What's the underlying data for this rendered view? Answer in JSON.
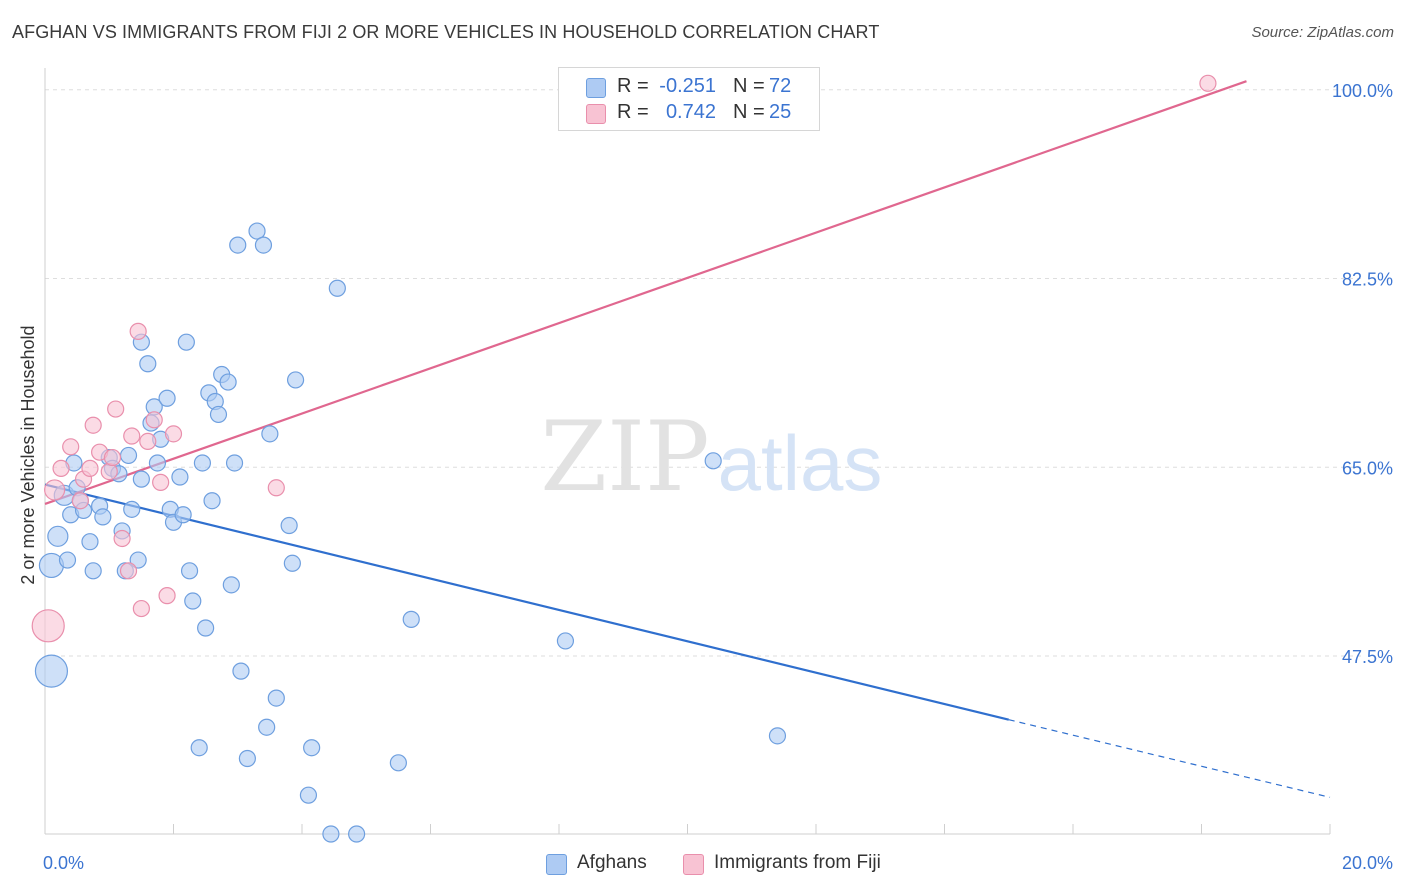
{
  "header": {
    "title": "AFGHAN VS IMMIGRANTS FROM FIJI 2 OR MORE VEHICLES IN HOUSEHOLD CORRELATION CHART",
    "source": "Source: ZipAtlas.com"
  },
  "watermark": {
    "zip": "ZIP",
    "atlas": "atlas"
  },
  "legend": {
    "rows": [
      {
        "r_label": "R =",
        "r_value": "-0.251",
        "n_label": "N =",
        "n_value": "72"
      },
      {
        "r_label": "R =",
        "r_value": "0.742",
        "n_label": "N =",
        "n_value": "25"
      }
    ],
    "bottom": [
      "Afghans",
      "Immigrants from Fiji"
    ]
  },
  "colors": {
    "afghan_fill": "#aecbf3",
    "afghan_stroke": "#6e9fdf",
    "afghan_line": "#2f6fce",
    "fiji_fill": "#f8c3d3",
    "fiji_stroke": "#e98fac",
    "fiji_line": "#e0678f",
    "tick_label": "#3b74d1",
    "grid": "#dedede"
  },
  "chart_data": {
    "type": "scatter",
    "title": "AFGHAN VS IMMIGRANTS FROM FIJI 2 OR MORE VEHICLES IN HOUSEHOLD CORRELATION CHART",
    "xlabel": "",
    "ylabel": "2 or more Vehicles in Household",
    "xlim": [
      0.0,
      20.0
    ],
    "ylim": [
      31.0,
      101.0
    ],
    "x_tick_labels": [
      "0.0%",
      "20.0%"
    ],
    "y_ticks": [
      47.5,
      65.0,
      82.5,
      100.0
    ],
    "y_tick_labels": [
      "47.5%",
      "65.0%",
      "82.5%",
      "100.0%"
    ],
    "grid": true,
    "legend_position": "top-center",
    "series": [
      {
        "name": "Afghans",
        "r": -0.251,
        "n": 72,
        "trend": {
          "x0": 0.0,
          "y0": 63.4,
          "x1": 15.0,
          "y1": 41.6,
          "dashed_to_x": 20.0,
          "dashed_to_y": 34.4
        },
        "points": [
          [
            0.1,
            55.9,
            2
          ],
          [
            0.1,
            46.1,
            3
          ],
          [
            0.2,
            58.6,
            1
          ],
          [
            0.3,
            62.4,
            1
          ],
          [
            0.35,
            56.4,
            0
          ],
          [
            0.4,
            60.6,
            0
          ],
          [
            0.45,
            65.4,
            0
          ],
          [
            0.5,
            63.1,
            0
          ],
          [
            0.55,
            61.9,
            0
          ],
          [
            0.6,
            61.0,
            0
          ],
          [
            0.7,
            58.1,
            0
          ],
          [
            0.75,
            55.4,
            0
          ],
          [
            0.85,
            61.4,
            0
          ],
          [
            0.9,
            60.4,
            0
          ],
          [
            1.0,
            65.9,
            0
          ],
          [
            1.05,
            64.9,
            0
          ],
          [
            1.15,
            64.4,
            0
          ],
          [
            1.2,
            59.1,
            0
          ],
          [
            1.25,
            55.4,
            0
          ],
          [
            1.3,
            66.1,
            0
          ],
          [
            1.35,
            61.1,
            0
          ],
          [
            1.45,
            56.4,
            0
          ],
          [
            1.5,
            63.9,
            0
          ],
          [
            1.5,
            76.6,
            0
          ],
          [
            1.6,
            74.6,
            0
          ],
          [
            1.65,
            69.1,
            0
          ],
          [
            1.7,
            70.6,
            0
          ],
          [
            1.75,
            65.4,
            0
          ],
          [
            1.8,
            67.6,
            0
          ],
          [
            1.9,
            71.4,
            0
          ],
          [
            1.95,
            61.1,
            0
          ],
          [
            2.0,
            59.9,
            0
          ],
          [
            2.1,
            64.1,
            0
          ],
          [
            2.15,
            60.6,
            0
          ],
          [
            2.2,
            76.6,
            0
          ],
          [
            2.25,
            55.4,
            0
          ],
          [
            2.3,
            52.6,
            0
          ],
          [
            2.4,
            39.0,
            0
          ],
          [
            2.45,
            65.4,
            0
          ],
          [
            2.5,
            50.1,
            0
          ],
          [
            2.55,
            71.9,
            0
          ],
          [
            2.6,
            61.9,
            0
          ],
          [
            2.65,
            71.1,
            0
          ],
          [
            2.7,
            69.9,
            0
          ],
          [
            2.75,
            73.6,
            0
          ],
          [
            2.85,
            72.9,
            0
          ],
          [
            2.9,
            54.1,
            0
          ],
          [
            2.95,
            65.4,
            0
          ],
          [
            3.0,
            85.6,
            0
          ],
          [
            3.05,
            46.1,
            0
          ],
          [
            3.15,
            38.0,
            0
          ],
          [
            3.3,
            86.9,
            0
          ],
          [
            3.4,
            85.6,
            0
          ],
          [
            3.45,
            40.9,
            0
          ],
          [
            3.5,
            68.1,
            0
          ],
          [
            3.6,
            43.6,
            0
          ],
          [
            3.8,
            59.6,
            0
          ],
          [
            3.85,
            56.1,
            0
          ],
          [
            3.9,
            73.1,
            0
          ],
          [
            4.1,
            34.6,
            0
          ],
          [
            4.15,
            39.0,
            0
          ],
          [
            4.45,
            31.0,
            0
          ],
          [
            4.55,
            81.6,
            0
          ],
          [
            4.85,
            31.0,
            0
          ],
          [
            5.5,
            37.6,
            0
          ],
          [
            5.7,
            50.9,
            0
          ],
          [
            8.1,
            48.9,
            0
          ],
          [
            10.4,
            65.6,
            0
          ],
          [
            11.4,
            40.1,
            0
          ]
        ]
      },
      {
        "name": "Immigrants from Fiji",
        "r": 0.742,
        "n": 25,
        "trend": {
          "x0": 0.0,
          "y0": 61.6,
          "x1": 18.7,
          "y1": 100.8
        },
        "points": [
          [
            0.05,
            50.3,
            3
          ],
          [
            0.15,
            62.9,
            1
          ],
          [
            0.25,
            64.9,
            0
          ],
          [
            0.4,
            66.9,
            0
          ],
          [
            0.55,
            61.9,
            0
          ],
          [
            0.6,
            63.9,
            0
          ],
          [
            0.7,
            64.9,
            0
          ],
          [
            0.75,
            68.9,
            0
          ],
          [
            0.85,
            66.4,
            0
          ],
          [
            1.0,
            64.6,
            0
          ],
          [
            1.05,
            65.9,
            0
          ],
          [
            1.1,
            70.4,
            0
          ],
          [
            1.2,
            58.4,
            0
          ],
          [
            1.3,
            55.4,
            0
          ],
          [
            1.35,
            67.9,
            0
          ],
          [
            1.45,
            77.6,
            0
          ],
          [
            1.5,
            51.9,
            0
          ],
          [
            1.6,
            67.4,
            0
          ],
          [
            1.7,
            69.4,
            0
          ],
          [
            1.8,
            63.6,
            0
          ],
          [
            1.9,
            53.1,
            0
          ],
          [
            2.0,
            68.1,
            0
          ],
          [
            3.6,
            63.1,
            0
          ],
          [
            18.1,
            100.6,
            0
          ]
        ]
      }
    ]
  }
}
